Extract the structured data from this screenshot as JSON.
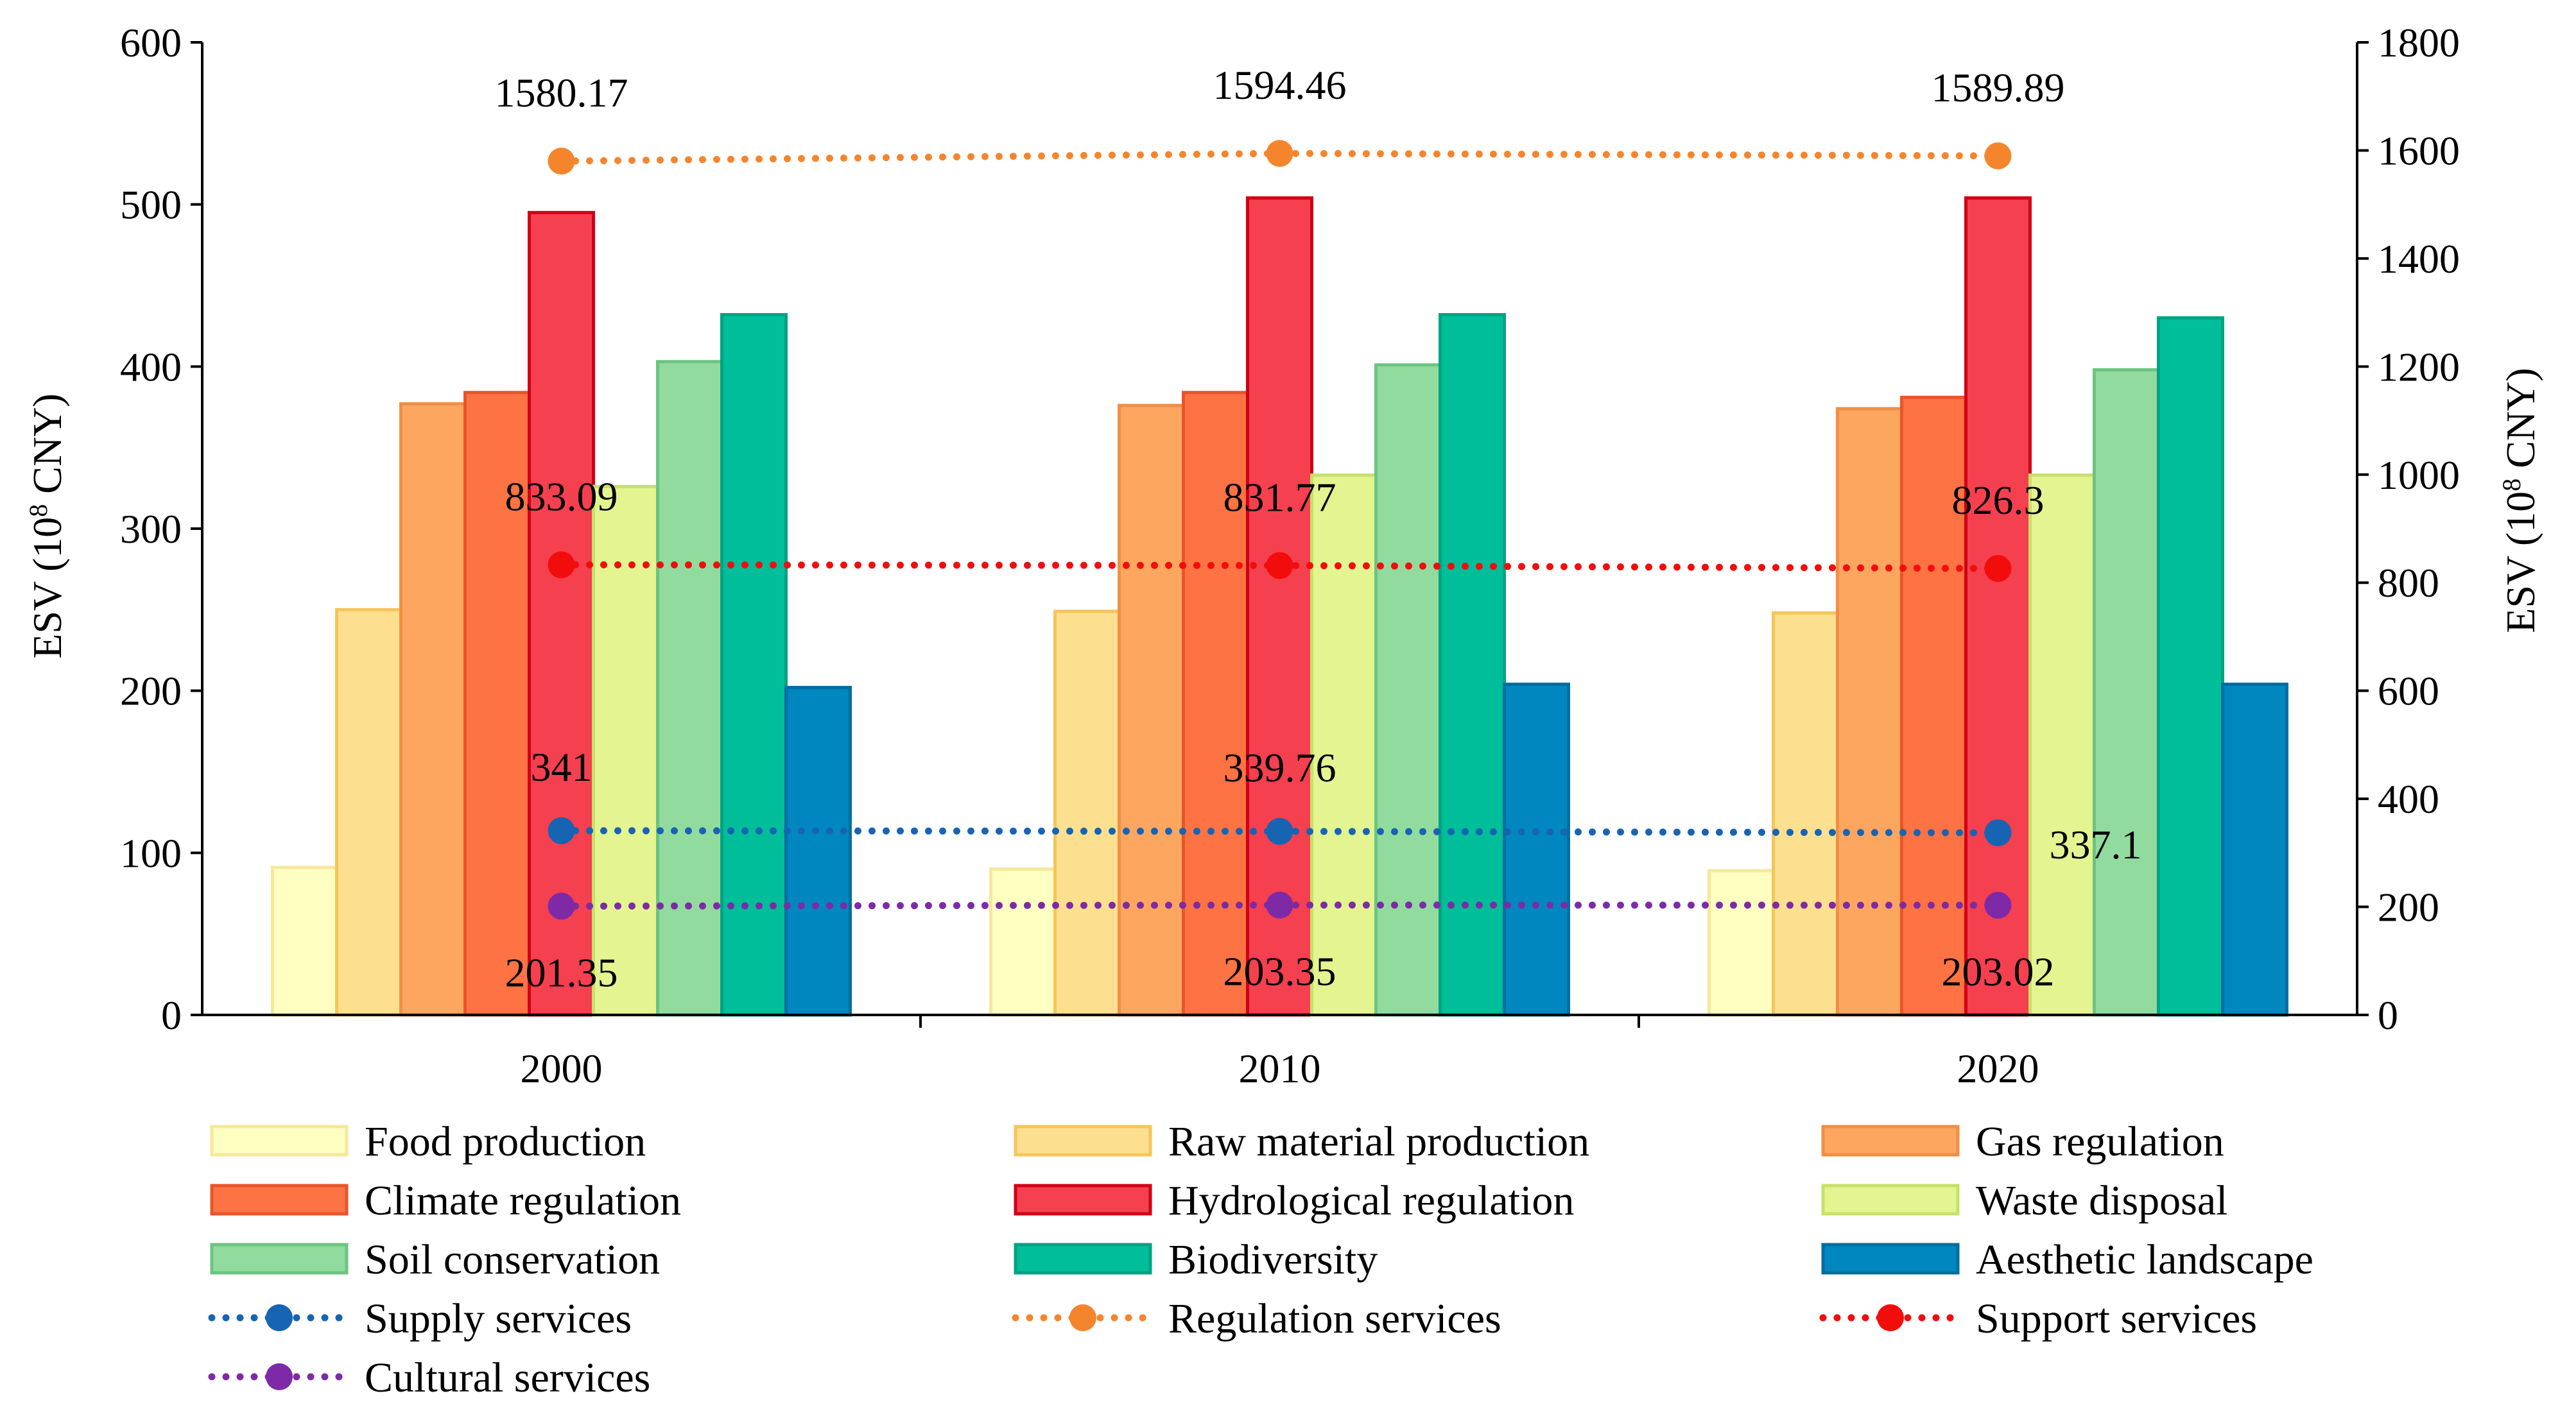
{
  "chart_data": {
    "type": "bar",
    "categories": [
      "2000",
      "2010",
      "2020"
    ],
    "ylabel": "ESV (10^8 CNY)",
    "ylabel_parts": {
      "prefix": "ESV (10",
      "sup": "8",
      "suffix": " CNY)"
    },
    "ylim": [
      0,
      600
    ],
    "yticks": [
      "0",
      "100",
      "200",
      "300",
      "400",
      "500",
      "600"
    ],
    "y2label": "ESV (10^8 CNY)",
    "y2lim": [
      0,
      1800
    ],
    "y2ticks": [
      "0",
      "200",
      "400",
      "600",
      "800",
      "1000",
      "1200",
      "1400",
      "1600",
      "1800"
    ],
    "bar_series": [
      {
        "name": "Food production",
        "fill": "#FFFFC2",
        "stroke": "#F7E79A",
        "values": [
          91,
          90,
          89
        ]
      },
      {
        "name": "Raw material production",
        "fill": "#FDE08F",
        "stroke": "#F5C55B",
        "values": [
          250,
          249,
          248
        ]
      },
      {
        "name": "Gas regulation",
        "fill": "#FCA65F",
        "stroke": "#F08F45",
        "values": [
          377,
          376,
          374
        ]
      },
      {
        "name": "Climate regulation",
        "fill": "#FE7343",
        "stroke": "#E8552A",
        "values": [
          384,
          384,
          381
        ]
      },
      {
        "name": "Hydrological regulation",
        "fill": "#F4404F",
        "stroke": "#D00016",
        "values": [
          495,
          504,
          504
        ]
      },
      {
        "name": "Waste disposal",
        "fill": "#E3F491",
        "stroke": "#C6E06A",
        "values": [
          326,
          333,
          333
        ]
      },
      {
        "name": "Soil conservation",
        "fill": "#91DB9F",
        "stroke": "#6CC481",
        "values": [
          403,
          401,
          398
        ]
      },
      {
        "name": "Biodiversity",
        "fill": "#00BE9A",
        "stroke": "#00A383",
        "values": [
          432,
          432,
          430
        ]
      },
      {
        "name": "Aesthetic landscape",
        "fill": "#0087C0",
        "stroke": "#006E9F",
        "values": [
          202,
          204,
          204
        ]
      }
    ],
    "line_series": [
      {
        "name": "Supply services",
        "color": "#1764B3",
        "axis": "right",
        "values": [
          341,
          339.76,
          337.1
        ],
        "labels": [
          "341",
          "339.76",
          "337.1"
        ]
      },
      {
        "name": "Regulation services",
        "color": "#F5852D",
        "axis": "right",
        "values": [
          1580.17,
          1594.46,
          1589.89
        ],
        "labels": [
          "1580.17",
          "1594.46",
          "1589.89"
        ]
      },
      {
        "name": "Support services",
        "color": "#F20D0D",
        "axis": "right",
        "values": [
          833.09,
          831.77,
          826.3
        ],
        "labels": [
          "833.09",
          "831.77",
          "826.3"
        ]
      },
      {
        "name": "Cultural services",
        "color": "#7E2AA7",
        "axis": "right",
        "values": [
          201.35,
          203.35,
          203.02
        ],
        "labels": [
          "201.35",
          "203.35",
          "203.02"
        ]
      }
    ],
    "legend_position": "bottom"
  }
}
